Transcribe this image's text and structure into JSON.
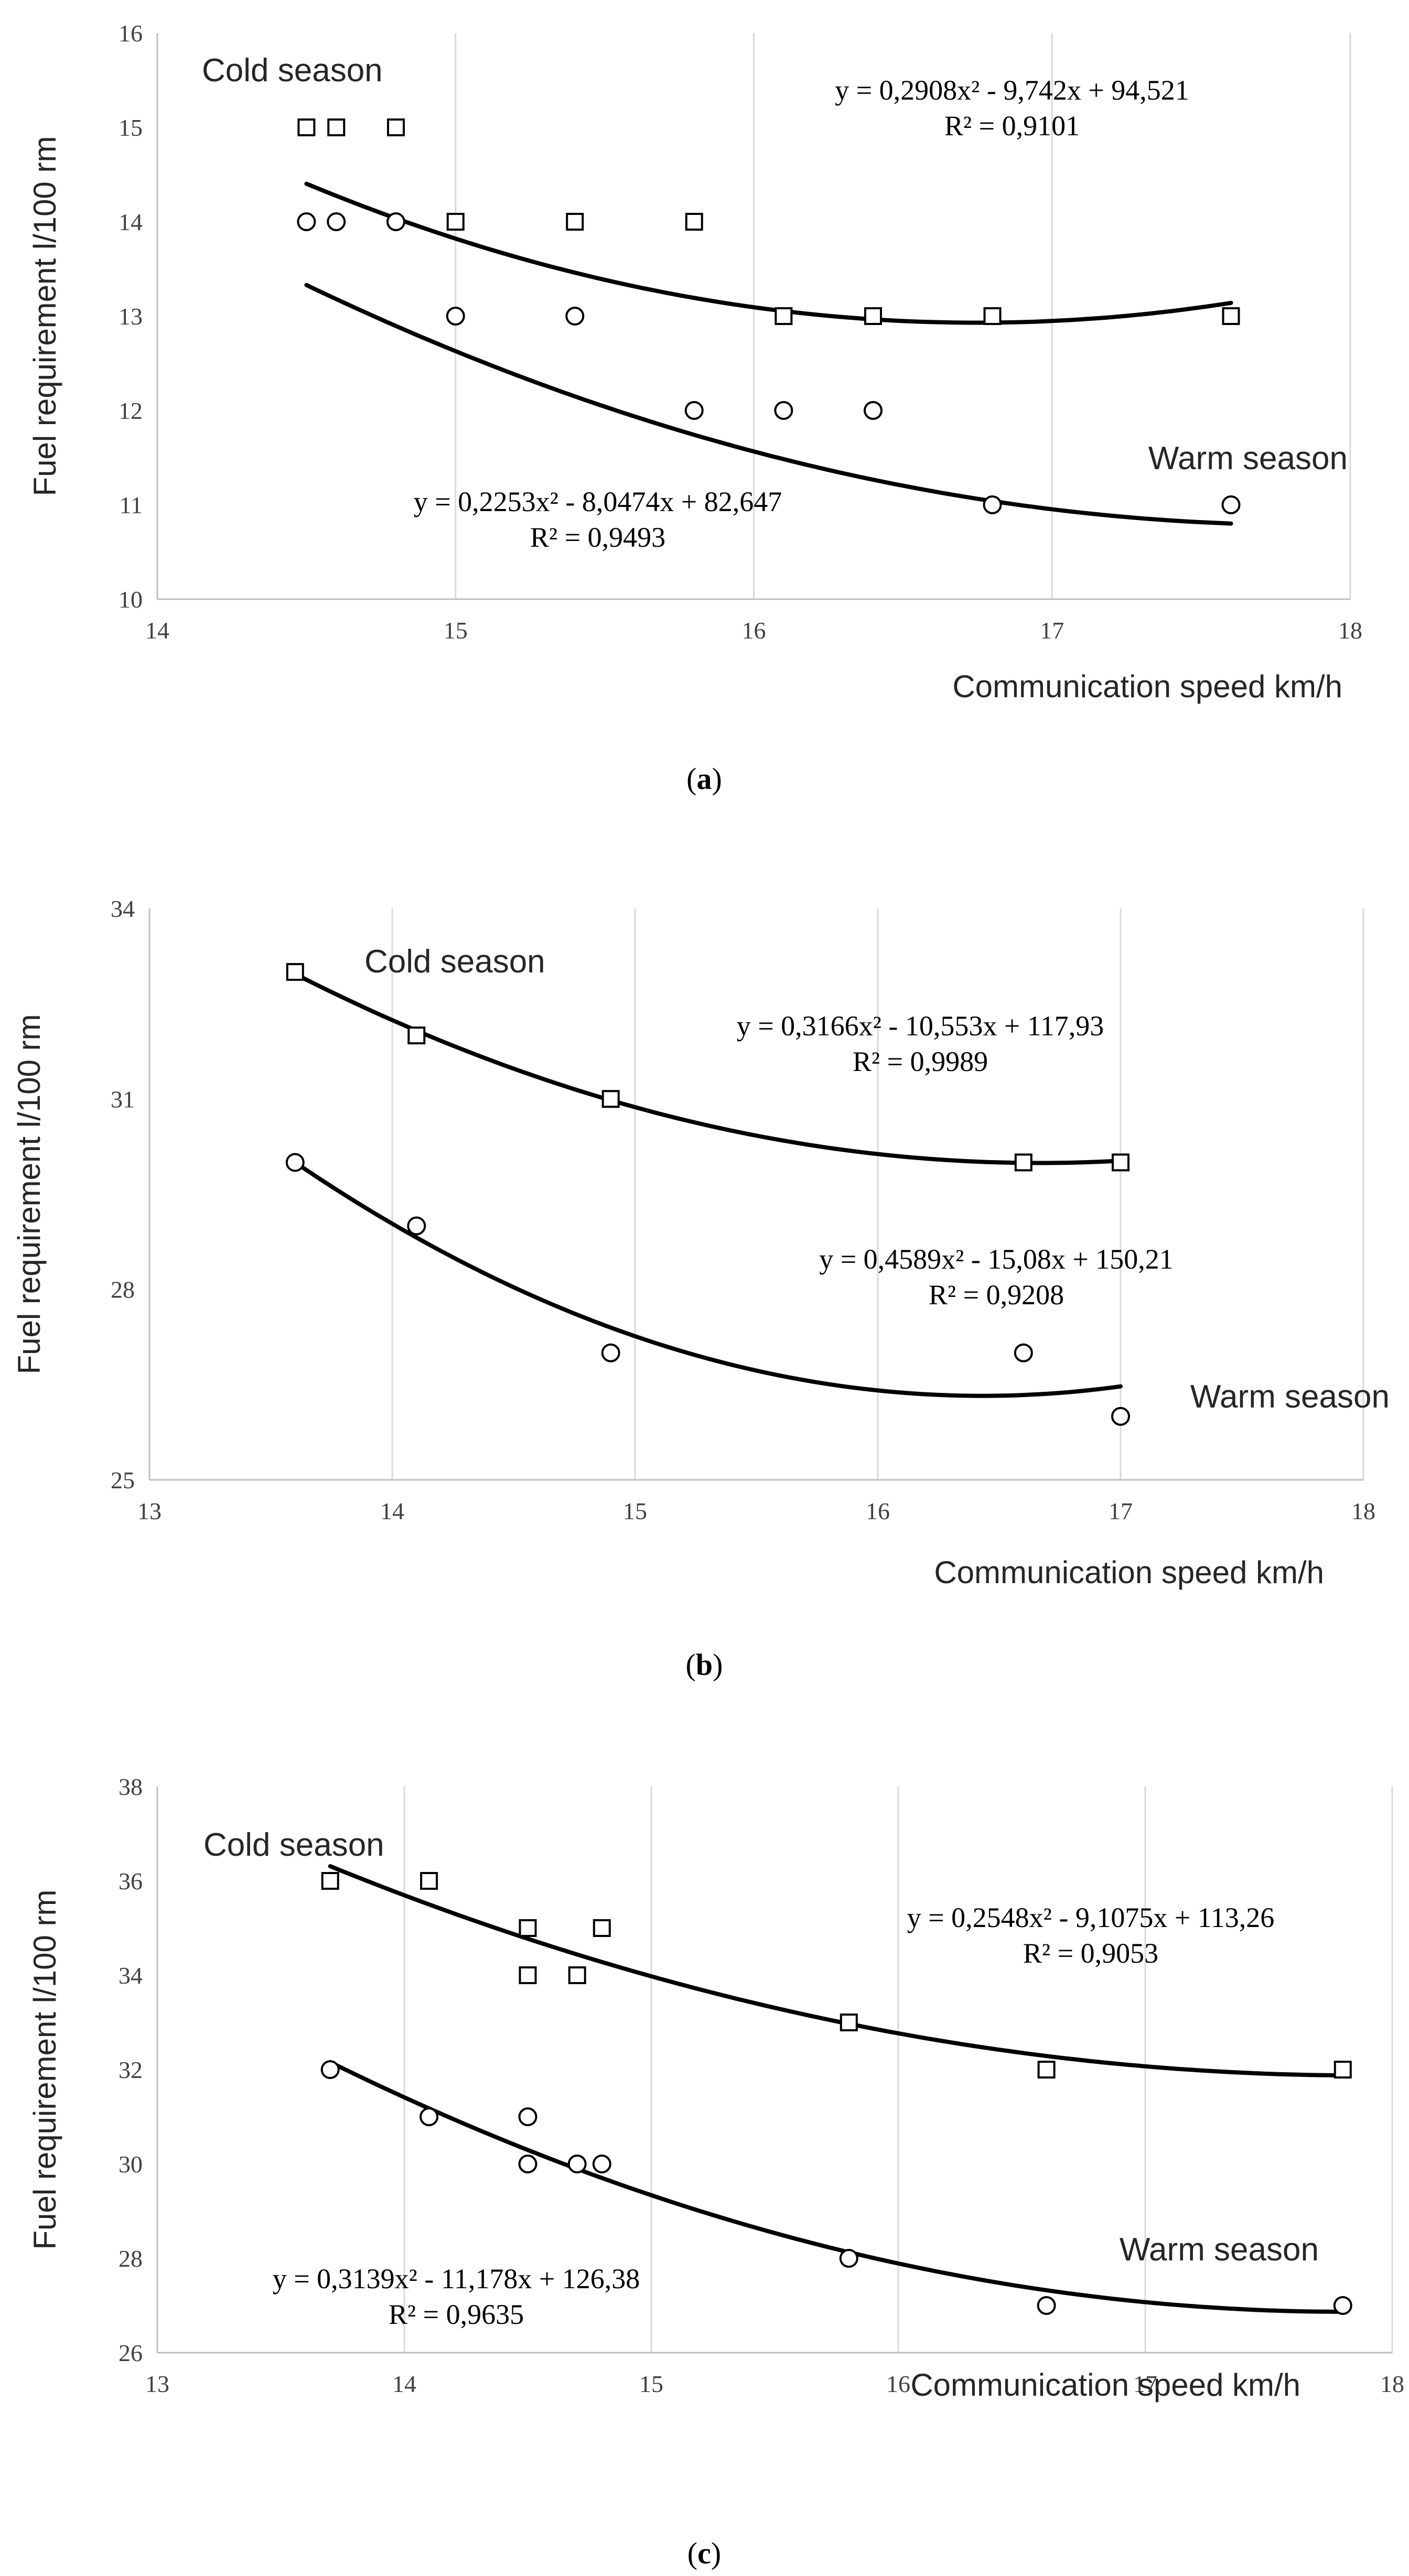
{
  "chart_data": [
    {
      "type": "scatter",
      "panel_label": "a",
      "xlabel": "Communication speed km/h",
      "ylabel": "Fuel requirement l/100 rm",
      "xlim": [
        14,
        18
      ],
      "ylim": [
        10,
        16
      ],
      "xticks": [
        14,
        15,
        16,
        17,
        18
      ],
      "yticks": [
        10,
        11,
        12,
        13,
        14,
        15,
        16
      ],
      "grid": "vertical",
      "series": [
        {
          "name": "Cold season",
          "marker": "square",
          "x": [
            14.5,
            14.6,
            14.8,
            15.0,
            15.4,
            15.8,
            16.1,
            16.4,
            16.8,
            17.6
          ],
          "y": [
            15,
            15,
            15,
            14,
            14,
            14,
            13,
            13,
            13,
            13
          ],
          "trend": {
            "a": 0.2908,
            "b": -9.742,
            "c": 94.521,
            "x_range": [
              14.5,
              17.6
            ]
          },
          "equation": "y = 0,2908x² - 9,742x + 94,521",
          "r2": "R² = 0,9101"
        },
        {
          "name": "Warm season",
          "marker": "circle",
          "x": [
            14.5,
            14.6,
            14.8,
            15.0,
            15.4,
            15.8,
            16.1,
            16.4,
            16.8,
            17.6
          ],
          "y": [
            14,
            14,
            14,
            13,
            13,
            12,
            12,
            12,
            11,
            11
          ],
          "trend": {
            "a": 0.2253,
            "b": -8.0474,
            "c": 82.647,
            "x_range": [
              14.5,
              17.6
            ]
          },
          "equation": "y = 0,2253x² - 8,0474x + 82,647",
          "r2": "R² = 0,9493"
        }
      ]
    },
    {
      "type": "scatter",
      "panel_label": "b",
      "xlabel": "Communication speed km/h",
      "ylabel": "Fuel requirement l/100 rm",
      "xlim": [
        13,
        18
      ],
      "ylim": [
        25,
        34
      ],
      "xticks": [
        13,
        14,
        15,
        16,
        17,
        18
      ],
      "yticks": [
        25,
        28,
        31,
        34
      ],
      "grid": "vertical",
      "series": [
        {
          "name": "Cold season",
          "marker": "square",
          "x": [
            13.6,
            14.1,
            14.9,
            16.6,
            17.0
          ],
          "y": [
            33,
            32,
            31,
            30,
            30
          ],
          "trend": {
            "a": 0.3166,
            "b": -10.553,
            "c": 117.93,
            "x_range": [
              13.6,
              17.0
            ]
          },
          "equation": "y = 0,3166x² - 10,553x + 117,93",
          "r2": "R² = 0,9989"
        },
        {
          "name": "Warm season",
          "marker": "circle",
          "x": [
            13.6,
            14.1,
            14.9,
            16.6,
            17.0
          ],
          "y": [
            30,
            29,
            27,
            27,
            26
          ],
          "trend": {
            "a": 0.4589,
            "b": -15.08,
            "c": 150.21,
            "x_range": [
              13.6,
              17.0
            ]
          },
          "equation": "y = 0,4589x² - 15,08x + 150,21",
          "r2": "R² = 0,9208"
        }
      ]
    },
    {
      "type": "scatter",
      "panel_label": "c",
      "xlabel": "Communication speed km/h",
      "ylabel": "Fuel requirement l/100 rm",
      "xlim": [
        13,
        18
      ],
      "ylim": [
        26,
        38
      ],
      "xticks": [
        13,
        14,
        15,
        16,
        17,
        18
      ],
      "yticks": [
        26,
        28,
        30,
        32,
        34,
        36,
        38
      ],
      "grid": "vertical",
      "series": [
        {
          "name": "Cold season",
          "marker": "square",
          "x": [
            13.7,
            14.1,
            14.5,
            14.5,
            14.7,
            14.8,
            15.8,
            16.6,
            17.8
          ],
          "y": [
            36,
            36,
            35,
            34,
            34,
            35,
            33,
            32,
            32
          ],
          "trend": {
            "a": 0.2548,
            "b": -9.1075,
            "c": 113.26,
            "x_range": [
              13.7,
              17.8
            ]
          },
          "equation": "y = 0,2548x² - 9,1075x + 113,26",
          "r2": "R² = 0,9053"
        },
        {
          "name": "Warm season",
          "marker": "circle",
          "x": [
            13.7,
            14.1,
            14.5,
            14.5,
            14.7,
            14.8,
            15.8,
            16.6,
            17.8
          ],
          "y": [
            32,
            31,
            31,
            30,
            30,
            30,
            28,
            27,
            27
          ],
          "trend": {
            "a": 0.3139,
            "b": -11.178,
            "c": 126.38,
            "x_range": [
              13.7,
              17.8
            ]
          },
          "equation": "y = 0,3139x² - 11,178x + 126,38",
          "r2": "R² = 0,9635"
        }
      ]
    }
  ]
}
